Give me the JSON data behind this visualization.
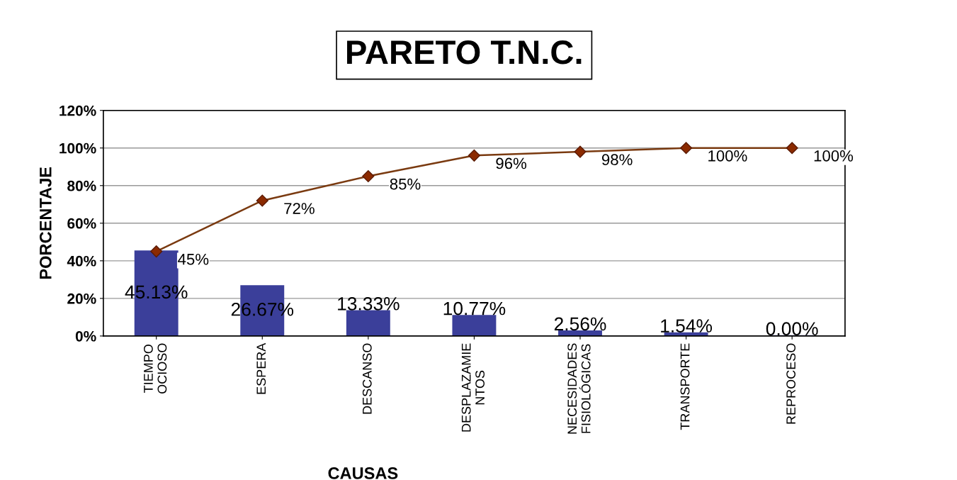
{
  "chart_data": {
    "type": "bar",
    "title": "PARETO T.N.C.",
    "xlabel": "CAUSAS",
    "ylabel": "PORCENTAJE",
    "categories": [
      "TIEMPO\nOCIOSO",
      "ESPERA",
      "DESCANSO",
      "DESPLAZAMIE\nNTOS",
      "NECESIDADES\nFISIOLÓGICAS",
      "TRANSPORTE",
      "REPROCESO"
    ],
    "series": [
      {
        "color": "#3b3f9a",
        "values": [
          45.13,
          26.67,
          13.33,
          10.77,
          2.56,
          1.54,
          0.0
        ],
        "value_labels": [
          "45.13%",
          "26.67%",
          "13.33%",
          "10.77%",
          "2.56%",
          "1.54%",
          "0.00%"
        ]
      },
      {
        "type": "line",
        "color": "#7a3a10",
        "marker": "diamond",
        "values": [
          45,
          72,
          85,
          96,
          98,
          100,
          100
        ],
        "value_labels": [
          "45%",
          "72%",
          "85%",
          "96%",
          "98%",
          "100%",
          "100%"
        ]
      }
    ],
    "ylim": [
      0,
      120
    ],
    "yticks": [
      {
        "value": 0,
        "label": "0%"
      },
      {
        "value": 20,
        "label": "20%"
      },
      {
        "value": 40,
        "label": "40%"
      },
      {
        "value": 60,
        "label": "60%"
      },
      {
        "value": 80,
        "label": "80%"
      },
      {
        "value": 100,
        "label": "100%"
      },
      {
        "value": 120,
        "label": "120%"
      }
    ],
    "grid": "y"
  }
}
